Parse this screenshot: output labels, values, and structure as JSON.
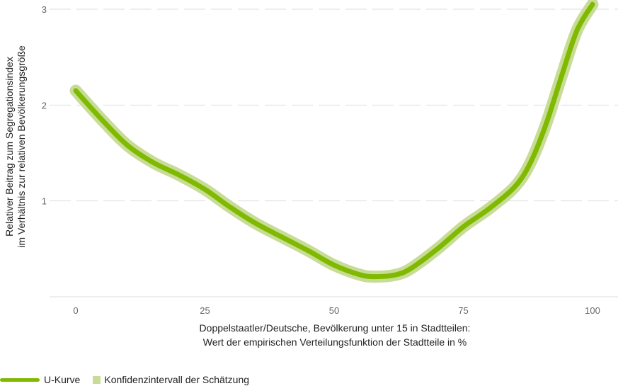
{
  "chart_data": {
    "type": "line",
    "x_label_line1": "Doppelstaatler/Deutsche, Bevölkerung unter 15 in Stadtteilen:",
    "x_label_line2": "Wert der empirischen Verteilungsfunktion der Stadtteile in %",
    "y_label_line1": "Relativer Beitrag zum Segregationsindex",
    "y_label_line2": "im Verhältnis zur relativen Bevölkerungsgröße",
    "x_ticks": [
      "0",
      "25",
      "50",
      "75",
      "100"
    ],
    "y_ticks": [
      "1",
      "2",
      "3"
    ],
    "xlim": [
      0,
      100
    ],
    "ylim": [
      0,
      3
    ],
    "grid": true,
    "legend_position": "bottom-left",
    "series": [
      {
        "name": "U-Kurve",
        "color": "#7fba00",
        "x": [
          0,
          5,
          10,
          15,
          20,
          25,
          30,
          35,
          40,
          45,
          50,
          55,
          58,
          62,
          65,
          70,
          75,
          80,
          85,
          88,
          91,
          94,
          97,
          100
        ],
        "y": [
          2.15,
          1.85,
          1.58,
          1.4,
          1.27,
          1.12,
          0.93,
          0.76,
          0.62,
          0.48,
          0.33,
          0.23,
          0.21,
          0.23,
          0.3,
          0.5,
          0.73,
          0.92,
          1.15,
          1.4,
          1.8,
          2.3,
          2.78,
          3.05
        ]
      }
    ],
    "confidence_band": {
      "name": "Konfidenzintervall der Schätzung",
      "color": "#c8dc97",
      "halfwidth": 0.045
    }
  }
}
